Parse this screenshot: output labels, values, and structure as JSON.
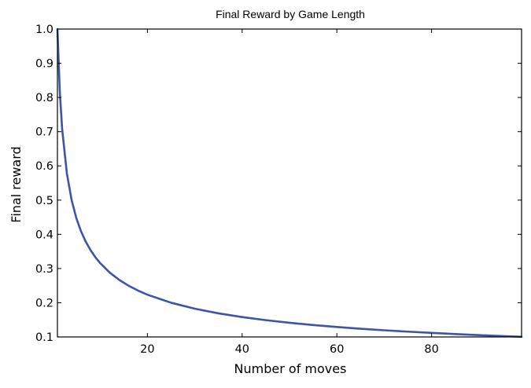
{
  "chart_data": {
    "type": "line",
    "title": "Final Reward by Game Length",
    "xlabel": "Number of moves",
    "ylabel": "Final reward",
    "xlim": [
      1,
      99
    ],
    "ylim": [
      0.1,
      1.0
    ],
    "xticks": [
      20,
      40,
      60,
      80
    ],
    "xtick_labels": [
      "20",
      "40",
      "60",
      "80"
    ],
    "yticks": [
      0.1,
      0.2,
      0.3,
      0.4,
      0.5,
      0.6,
      0.7,
      0.8,
      0.9,
      1.0
    ],
    "ytick_labels": [
      "0.1",
      "0.2",
      "0.3",
      "0.4",
      "0.5",
      "0.6",
      "0.7",
      "0.8",
      "0.9",
      "1.0"
    ],
    "grid": false,
    "legend": "none",
    "series": [
      {
        "color": "#3d55a5",
        "x": [
          1,
          1.5,
          2,
          3,
          4,
          5,
          6,
          7,
          8,
          9,
          10,
          12,
          14,
          16,
          18,
          20,
          25,
          30,
          35,
          40,
          45,
          50,
          55,
          60,
          65,
          70,
          75,
          80,
          85,
          90,
          95,
          99
        ],
        "y": [
          1.0,
          0.8172,
          0.7071,
          0.5774,
          0.5,
          0.4472,
          0.4082,
          0.378,
          0.3536,
          0.3333,
          0.3162,
          0.2887,
          0.2673,
          0.25,
          0.2357,
          0.2236,
          0.2,
          0.1826,
          0.169,
          0.1581,
          0.1491,
          0.1414,
          0.1348,
          0.1291,
          0.124,
          0.1195,
          0.1155,
          0.1118,
          0.1085,
          0.1054,
          0.1026,
          0.1005
        ]
      }
    ]
  }
}
